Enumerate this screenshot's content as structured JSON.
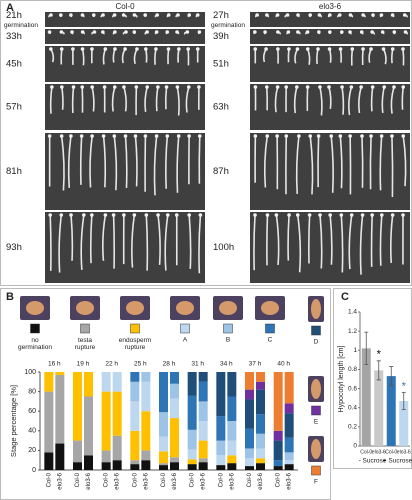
{
  "panel_a": {
    "label": "A",
    "columns": [
      "Col-0",
      "elo3-6"
    ],
    "left_times": [
      "21h",
      "33h",
      "45h",
      "57h",
      "81h",
      "93h"
    ],
    "right_times": [
      "27h",
      "39h",
      "51h",
      "63h",
      "87h",
      "100h"
    ],
    "first_row_note": "germination"
  },
  "chart_data": [
    {
      "type": "stacked_bar",
      "label": "B",
      "ylabel": "Stage percentage [%]",
      "ylim": [
        0,
        100
      ],
      "yticks": [
        0,
        20,
        40,
        60,
        80,
        100
      ],
      "groups": [
        "16 h",
        "19 h",
        "22 h",
        "25 h",
        "28 h",
        "31 h",
        "34 h",
        "37 h",
        "40 h"
      ],
      "categories": [
        "Col-0",
        "elo3-6",
        "Col-0",
        "elo3-6",
        "Col-0",
        "elo3-6",
        "Col-0",
        "elo3-6",
        "Col-0",
        "elo3-6",
        "Col-0",
        "elo3-6",
        "Col-0",
        "elo3-6",
        "Col-0",
        "elo3-6",
        "Col-0",
        "elo3-6"
      ],
      "series": [
        {
          "name": "no germination",
          "color": "#111111",
          "values": [
            18,
            27,
            8,
            15,
            8,
            10,
            6,
            10,
            5,
            8,
            6,
            8,
            5,
            7,
            4,
            7,
            4,
            6
          ]
        },
        {
          "name": "testa rupture",
          "color": "#a6a6a6",
          "values": [
            62,
            70,
            22,
            60,
            12,
            25,
            4,
            10,
            2,
            5,
            0,
            4,
            0,
            0,
            0,
            0,
            0,
            0
          ]
        },
        {
          "name": "endosperm rupture",
          "color": "#ffc000",
          "values": [
            20,
            3,
            70,
            25,
            60,
            45,
            30,
            40,
            12,
            40,
            5,
            18,
            0,
            8,
            0,
            5,
            0,
            0
          ]
        },
        {
          "name": "A",
          "color": "#bdd7ee",
          "values": [
            0,
            0,
            0,
            0,
            20,
            20,
            30,
            30,
            15,
            20,
            10,
            20,
            10,
            15,
            8,
            10,
            0,
            4
          ]
        },
        {
          "name": "B",
          "color": "#9dc3e6",
          "values": [
            0,
            0,
            0,
            0,
            0,
            0,
            20,
            10,
            25,
            15,
            20,
            20,
            15,
            20,
            10,
            15,
            0,
            8
          ]
        },
        {
          "name": "C",
          "color": "#2e75b6",
          "values": [
            0,
            0,
            0,
            0,
            0,
            0,
            10,
            0,
            41,
            12,
            35,
            20,
            25,
            25,
            20,
            20,
            6,
            15
          ]
        },
        {
          "name": "D",
          "color": "#1f4e79",
          "values": [
            0,
            0,
            0,
            0,
            0,
            0,
            0,
            0,
            0,
            0,
            24,
            10,
            45,
            25,
            30,
            25,
            20,
            25
          ]
        },
        {
          "name": "E",
          "color": "#7030a0",
          "values": [
            0,
            0,
            0,
            0,
            0,
            0,
            0,
            0,
            0,
            0,
            0,
            0,
            0,
            0,
            10,
            8,
            10,
            10
          ]
        },
        {
          "name": "F",
          "color": "#ed7d31",
          "values": [
            0,
            0,
            0,
            0,
            0,
            0,
            0,
            0,
            0,
            0,
            0,
            0,
            0,
            0,
            18,
            10,
            60,
            32
          ]
        }
      ]
    },
    {
      "type": "bar",
      "label": "C",
      "ylabel": "Hypocotyl length [cm]",
      "ylim": [
        0,
        1.4
      ],
      "yticks": [
        0,
        0.2,
        0.4,
        0.6,
        0.8,
        1,
        1.2,
        1.4
      ],
      "categories": [
        "Col-0",
        "elo3-6",
        "Col-0",
        "elo3-6"
      ],
      "groups": [
        "- Sucrose",
        "+ Sucrose"
      ],
      "values": [
        1.02,
        0.79,
        0.73,
        0.47
      ],
      "errors": [
        0.17,
        0.1,
        0.1,
        0.09
      ],
      "colors": [
        "#a5a5a5",
        "#c9c9c9",
        "#2e75b6",
        "#bdd7ee"
      ],
      "value_annotations": [
        null,
        "*",
        null,
        "*"
      ],
      "annotation_colors": [
        null,
        "#000000",
        null,
        "#2e75b6"
      ]
    }
  ]
}
